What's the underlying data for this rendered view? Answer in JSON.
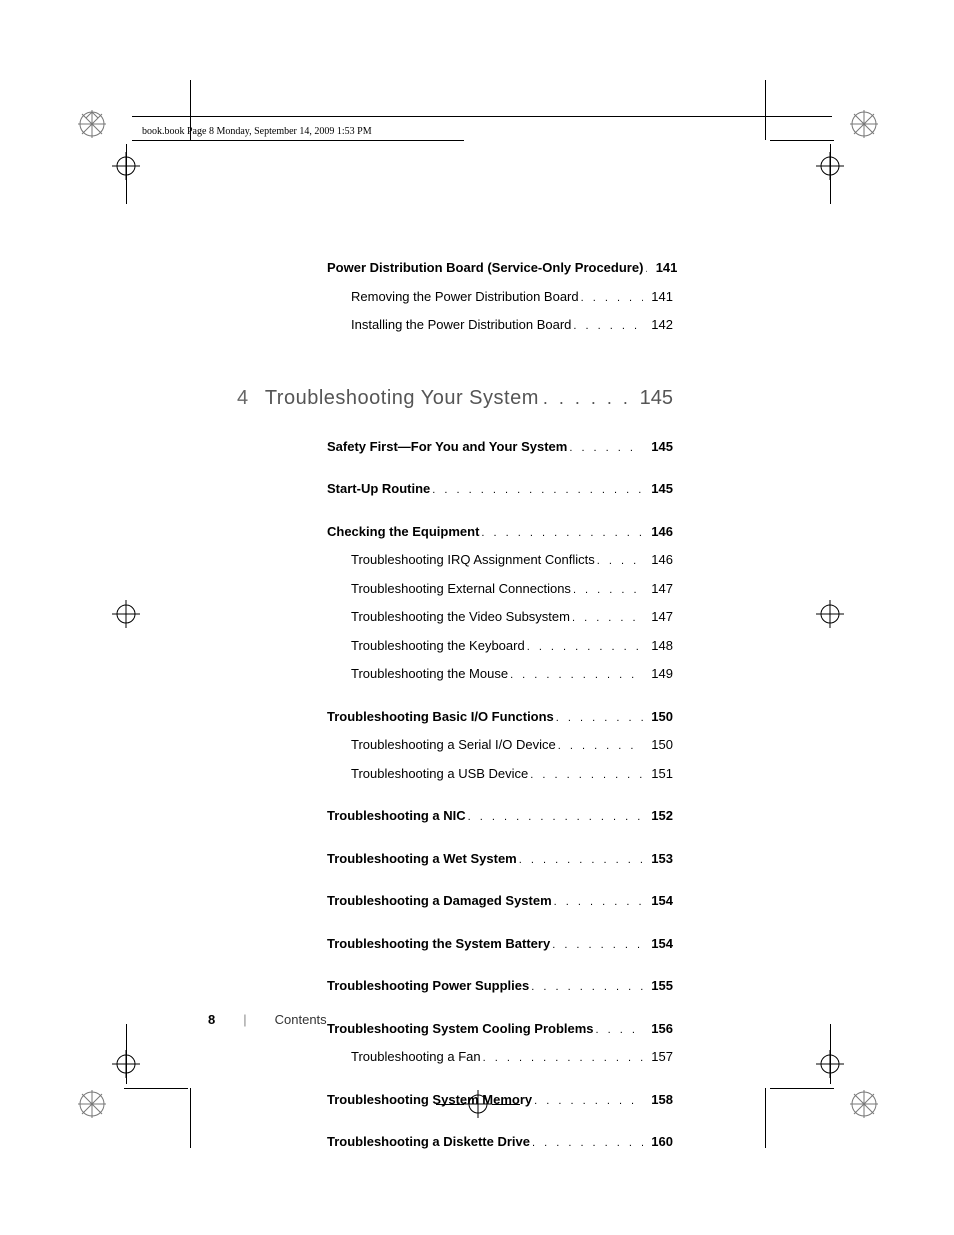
{
  "header": {
    "running_text": "book.book  Page 8  Monday, September 14, 2009  1:53 PM"
  },
  "section_top": {
    "heading": {
      "label": "Power Distribution Board (Service-Only Procedure)",
      "page": "141"
    },
    "items": [
      {
        "label": "Removing the Power Distribution Board",
        "page": "141"
      },
      {
        "label": "Installing the Power Distribution Board",
        "page": "142"
      }
    ]
  },
  "chapter": {
    "num": "4",
    "title": "Troubleshooting Your System",
    "page": "145"
  },
  "sections": [
    {
      "heading": {
        "label": "Safety First—For You and Your System",
        "page": "145"
      },
      "items": []
    },
    {
      "heading": {
        "label": "Start-Up Routine",
        "page": "145"
      },
      "items": []
    },
    {
      "heading": {
        "label": "Checking the Equipment",
        "page": "146"
      },
      "items": [
        {
          "label": "Troubleshooting IRQ Assignment Conflicts",
          "page": "146"
        },
        {
          "label": "Troubleshooting External Connections",
          "page": "147"
        },
        {
          "label": "Troubleshooting the Video Subsystem",
          "page": "147"
        },
        {
          "label": "Troubleshooting the Keyboard",
          "page": "148"
        },
        {
          "label": "Troubleshooting the Mouse",
          "page": "149"
        }
      ]
    },
    {
      "heading": {
        "label": "Troubleshooting Basic I/O Functions",
        "page": "150"
      },
      "items": [
        {
          "label": "Troubleshooting a Serial I/O Device",
          "page": "150"
        },
        {
          "label": "Troubleshooting a USB Device",
          "page": "151"
        }
      ]
    },
    {
      "heading": {
        "label": "Troubleshooting a NIC",
        "page": "152"
      },
      "items": []
    },
    {
      "heading": {
        "label": "Troubleshooting a Wet System",
        "page": "153"
      },
      "items": []
    },
    {
      "heading": {
        "label": "Troubleshooting a Damaged System",
        "page": "154"
      },
      "items": []
    },
    {
      "heading": {
        "label": "Troubleshooting the System Battery",
        "page": "154"
      },
      "items": []
    },
    {
      "heading": {
        "label": "Troubleshooting Power Supplies",
        "page": "155"
      },
      "items": []
    },
    {
      "heading": {
        "label": "Troubleshooting System Cooling Problems",
        "page": "156"
      },
      "items": [
        {
          "label": "Troubleshooting a Fan",
          "page": "157"
        }
      ]
    },
    {
      "heading": {
        "label": "Troubleshooting System Memory",
        "page": "158"
      },
      "items": []
    },
    {
      "heading": {
        "label": "Troubleshooting a Diskette Drive",
        "page": "160"
      },
      "items": []
    }
  ],
  "footer": {
    "page_number": "8",
    "divider": "|",
    "label": "Contents"
  },
  "colors": {
    "text": "#000000",
    "chapter_text": "#555555",
    "background": "#ffffff"
  }
}
